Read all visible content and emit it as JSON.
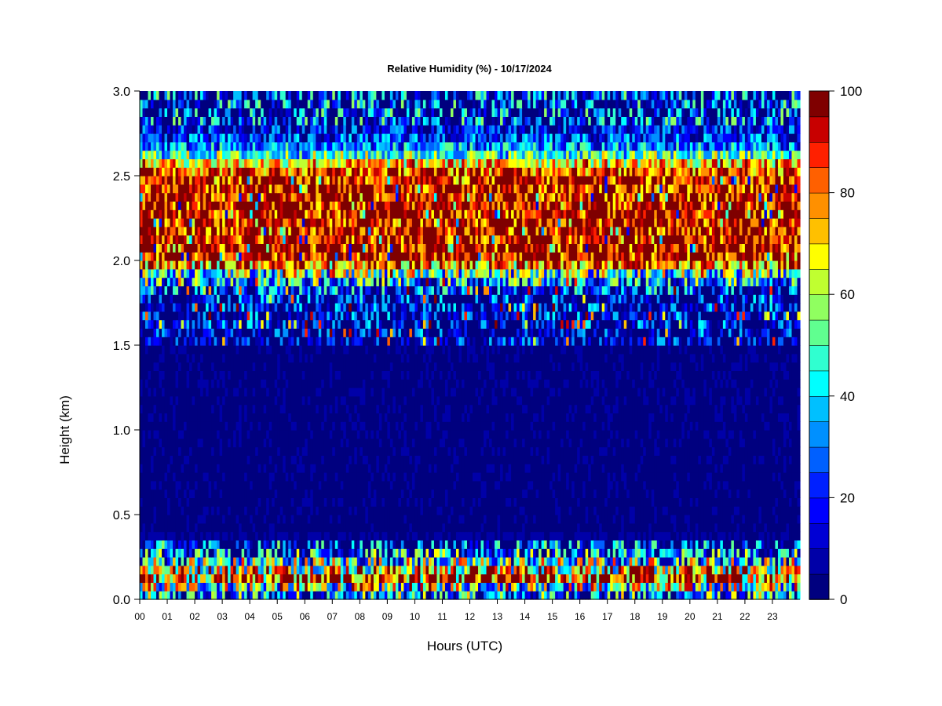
{
  "chart_data": {
    "type": "heatmap",
    "title": "Relative Humidity (%) - 10/17/2024",
    "xlabel": "Hours (UTC)",
    "ylabel": "Height (km)",
    "x_ticks": [
      "00",
      "01",
      "02",
      "03",
      "04",
      "05",
      "06",
      "07",
      "08",
      "09",
      "10",
      "11",
      "12",
      "13",
      "14",
      "15",
      "16",
      "17",
      "18",
      "19",
      "20",
      "21",
      "22",
      "23"
    ],
    "xlim": [
      0,
      24
    ],
    "y_ticks": [
      "0.0",
      "0.5",
      "1.0",
      "1.5",
      "2.0",
      "2.5",
      "3.0"
    ],
    "ylim": [
      0,
      3.0
    ],
    "colorbar": {
      "range": [
        0,
        100
      ],
      "levels": 20,
      "ticks": [
        "0",
        "20",
        "40",
        "60",
        "80",
        "100"
      ],
      "colors": [
        "#00007f",
        "#0000a8",
        "#0000d4",
        "#0000ff",
        "#0020ff",
        "#0060ff",
        "#0090ff",
        "#00c0ff",
        "#00ffff",
        "#30ffd0",
        "#60ff90",
        "#90ff60",
        "#c0ff30",
        "#ffff00",
        "#ffc000",
        "#ff9000",
        "#ff6000",
        "#ff2000",
        "#c80000",
        "#7f0000"
      ]
    },
    "grid": false,
    "profile": [
      {
        "height_km": 0.0,
        "rh_pct": 18
      },
      {
        "height_km": 0.05,
        "rh_pct": 35
      },
      {
        "height_km": 0.12,
        "rh_pct": 85
      },
      {
        "height_km": 0.15,
        "rh_pct": 90
      },
      {
        "height_km": 0.2,
        "rh_pct": 55
      },
      {
        "height_km": 0.3,
        "rh_pct": 15
      },
      {
        "height_km": 0.4,
        "rh_pct": 2
      },
      {
        "height_km": 1.5,
        "rh_pct": 3
      },
      {
        "height_km": 1.8,
        "rh_pct": 12
      },
      {
        "height_km": 1.92,
        "rh_pct": 45
      },
      {
        "height_km": 2.0,
        "rh_pct": 98
      },
      {
        "height_km": 2.5,
        "rh_pct": 95
      },
      {
        "height_km": 2.58,
        "rh_pct": 70
      },
      {
        "height_km": 2.65,
        "rh_pct": 35
      },
      {
        "height_km": 2.75,
        "rh_pct": 15
      },
      {
        "height_km": 3.0,
        "rh_pct": 12
      }
    ]
  }
}
